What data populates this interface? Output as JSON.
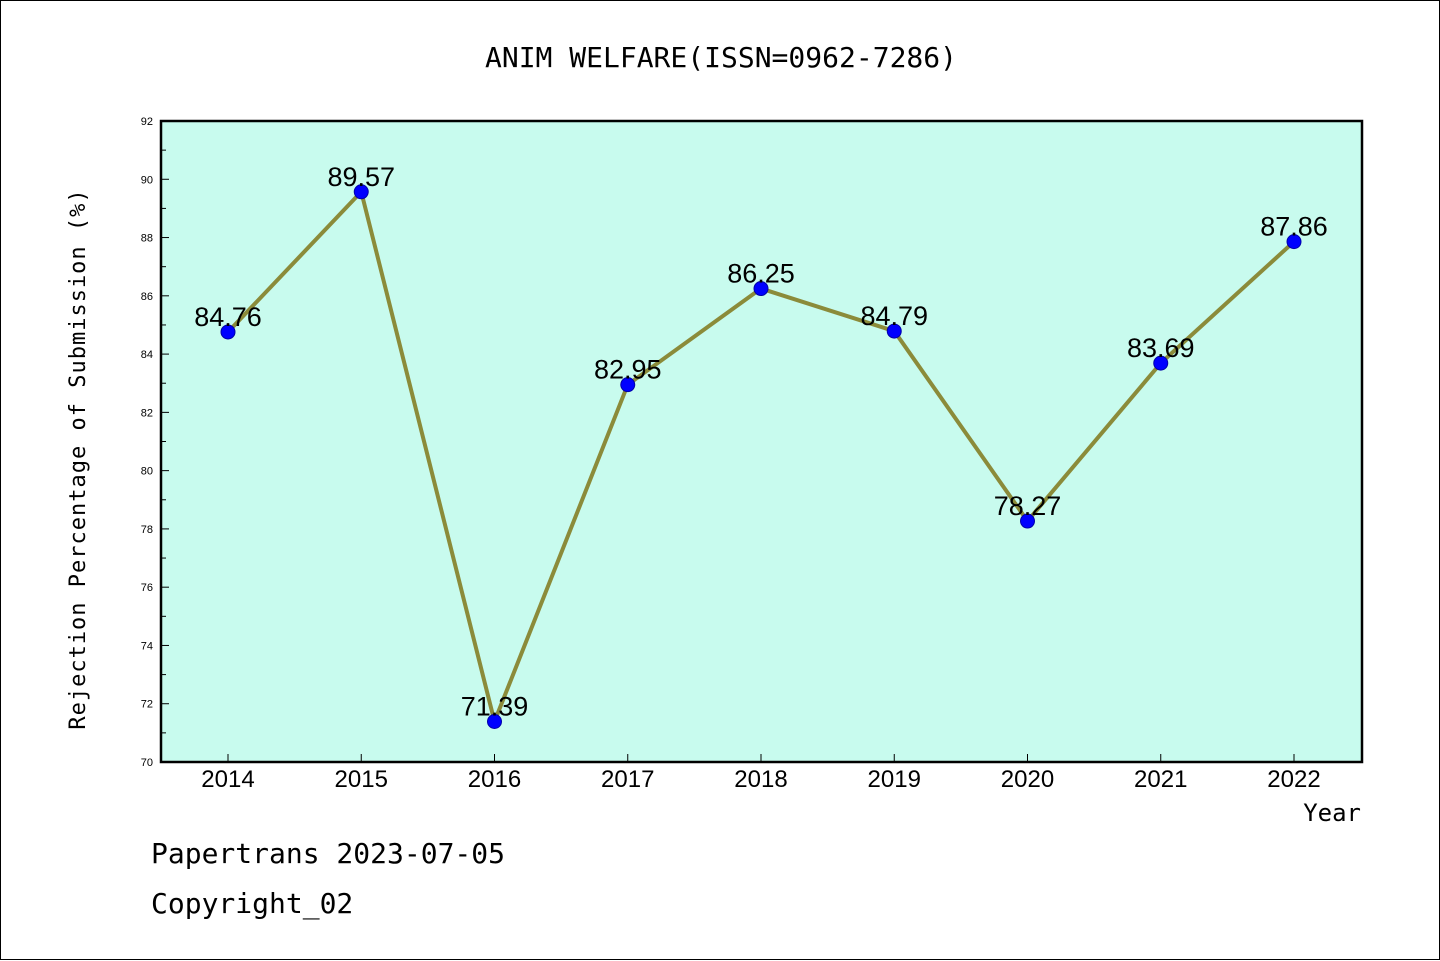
{
  "chart_data": {
    "type": "line",
    "title": "ANIM WELFARE(ISSN=0962-7286)",
    "xlabel": "Year",
    "ylabel": "Rejection Percentage of Submission (%)",
    "categories": [
      "2014",
      "2015",
      "2016",
      "2017",
      "2018",
      "2019",
      "2020",
      "2021",
      "2022"
    ],
    "values": [
      84.76,
      89.57,
      71.39,
      82.95,
      86.25,
      84.79,
      78.27,
      83.69,
      87.86
    ],
    "value_labels": [
      "84.76",
      "89.57",
      "71.39",
      "82.95",
      "86.25",
      "84.79",
      "78.27",
      "83.69",
      "87.86"
    ],
    "ylim": [
      70,
      92
    ],
    "yticks": [
      70,
      72,
      74,
      76,
      78,
      80,
      82,
      84,
      86,
      88,
      90,
      92
    ],
    "plot_background": "#c8fbee",
    "line_color": "#8b8b3a",
    "marker_color": "#0000ff",
    "grid": false
  },
  "footer": {
    "line1": "Papertrans 2023-07-05",
    "line2": "Copyright_02"
  }
}
